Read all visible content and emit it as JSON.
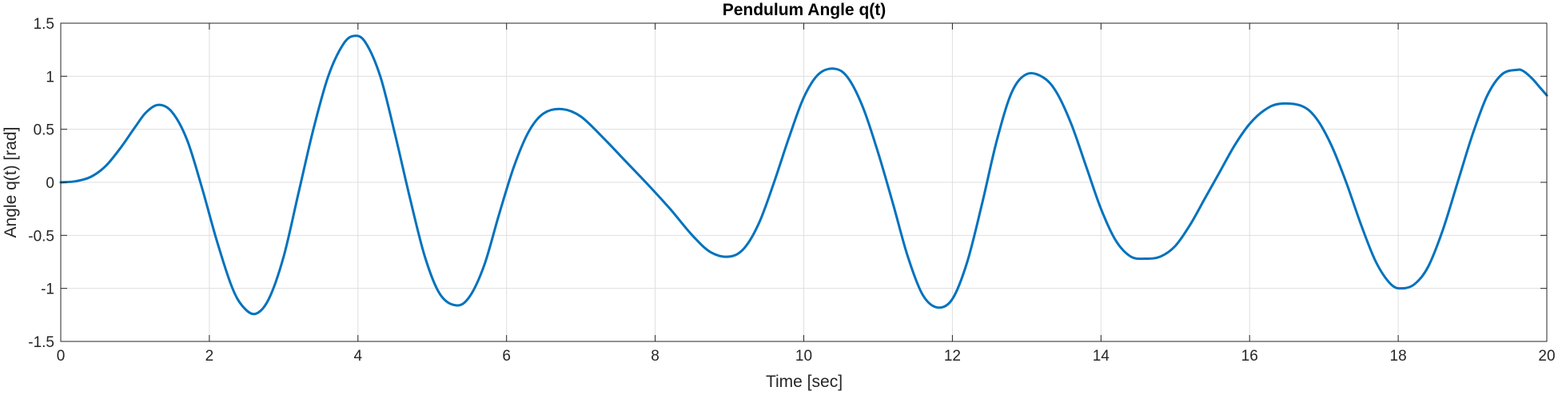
{
  "chart_data": {
    "type": "line",
    "title": "Pendulum Angle q(t)",
    "xlabel": "Time [sec]",
    "ylabel": "Angle q(t) [rad]",
    "xlim": [
      0,
      20
    ],
    "ylim": [
      -1.5,
      1.5
    ],
    "xticks": [
      0,
      2,
      4,
      6,
      8,
      10,
      12,
      14,
      16,
      18,
      20
    ],
    "yticks": [
      -1.5,
      -1,
      -0.5,
      0,
      0.5,
      1,
      1.5
    ],
    "xtick_labels": [
      "0",
      "2",
      "4",
      "6",
      "8",
      "10",
      "12",
      "14",
      "16",
      "18",
      "20"
    ],
    "ytick_labels": [
      "-1.5",
      "-1",
      "-0.5",
      "0",
      "0.5",
      "1",
      "1.5"
    ],
    "grid": true,
    "line_color": "#0072BD",
    "series": [
      {
        "x": [
          0,
          0.2,
          0.4,
          0.6,
          0.8,
          1.0,
          1.15,
          1.32,
          1.5,
          1.7,
          1.9,
          2.1,
          2.3,
          2.45,
          2.62,
          2.8,
          3.0,
          3.2,
          3.4,
          3.6,
          3.8,
          3.95,
          4.1,
          4.3,
          4.5,
          4.7,
          4.9,
          5.1,
          5.32,
          5.5,
          5.7,
          5.9,
          6.1,
          6.3,
          6.5,
          6.75,
          7.0,
          7.3,
          7.6,
          7.9,
          8.2,
          8.5,
          8.75,
          9.0,
          9.2,
          9.4,
          9.6,
          9.8,
          10.0,
          10.2,
          10.42,
          10.6,
          10.8,
          11.0,
          11.2,
          11.4,
          11.6,
          11.8,
          12.0,
          12.2,
          12.4,
          12.6,
          12.8,
          13.0,
          13.22,
          13.4,
          13.6,
          13.8,
          14.0,
          14.2,
          14.4,
          14.6,
          14.8,
          15.0,
          15.2,
          15.4,
          15.6,
          15.8,
          16.0,
          16.2,
          16.4,
          16.7,
          16.9,
          17.1,
          17.3,
          17.5,
          17.7,
          17.9,
          18.05,
          18.22,
          18.4,
          18.6,
          18.8,
          19.0,
          19.2,
          19.4,
          19.6,
          19.68,
          19.8,
          19.9,
          20.0
        ],
        "y": [
          0,
          0.01,
          0.05,
          0.15,
          0.32,
          0.52,
          0.66,
          0.73,
          0.66,
          0.4,
          -0.05,
          -0.55,
          -0.98,
          -1.17,
          -1.24,
          -1.1,
          -0.7,
          -0.1,
          0.5,
          1.0,
          1.3,
          1.38,
          1.32,
          1.0,
          0.45,
          -0.15,
          -0.7,
          -1.05,
          -1.16,
          -1.08,
          -0.78,
          -0.3,
          0.15,
          0.48,
          0.65,
          0.69,
          0.62,
          0.42,
          0.2,
          -0.02,
          -0.25,
          -0.5,
          -0.66,
          -0.7,
          -0.62,
          -0.38,
          0.0,
          0.42,
          0.8,
          1.02,
          1.07,
          0.98,
          0.7,
          0.28,
          -0.2,
          -0.7,
          -1.06,
          -1.18,
          -1.1,
          -0.75,
          -0.2,
          0.4,
          0.85,
          1.02,
          0.99,
          0.85,
          0.55,
          0.15,
          -0.25,
          -0.55,
          -0.7,
          -0.72,
          -0.7,
          -0.6,
          -0.4,
          -0.15,
          0.1,
          0.35,
          0.55,
          0.68,
          0.74,
          0.72,
          0.6,
          0.35,
          0.0,
          -0.4,
          -0.75,
          -0.96,
          -1.0,
          -0.96,
          -0.8,
          -0.45,
          0.0,
          0.45,
          0.82,
          1.02,
          1.06,
          1.05,
          0.98,
          0.9,
          0.82
        ]
      }
    ]
  }
}
